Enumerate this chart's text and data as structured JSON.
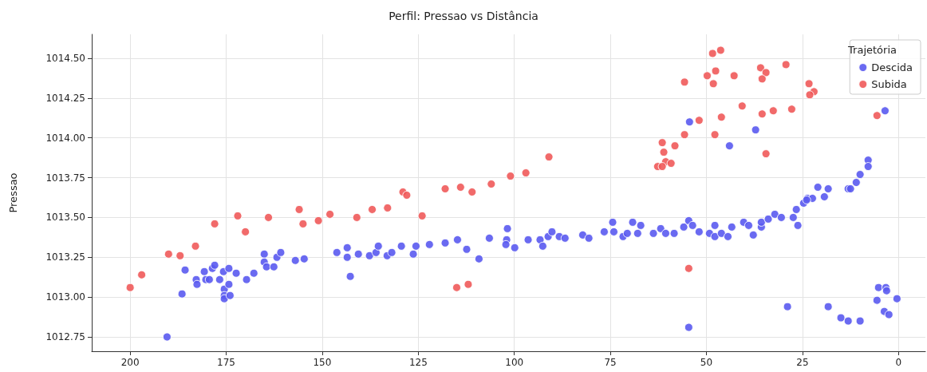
{
  "chart_data": {
    "type": "scatter",
    "title": "Perfil: Pressao vs Distância",
    "ylabel": "Pressao",
    "legend_title": "Trajetória",
    "legend": "top right",
    "grid": true,
    "marker": "circle",
    "xlim": [
      210,
      -7
    ],
    "xticks": [
      200,
      175,
      150,
      125,
      100,
      75,
      50,
      25,
      0
    ],
    "ylim": [
      1012.66,
      1014.65
    ],
    "yticks": [
      {
        "value": 1012.75,
        "label": "1012.75"
      },
      {
        "value": 1013,
        "label": "1013.00"
      },
      {
        "value": 1013.25,
        "label": "1013.25"
      },
      {
        "value": 1013.5,
        "label": "1013.50"
      },
      {
        "value": 1013.75,
        "label": "1013.75"
      },
      {
        "value": 1014,
        "label": "1014.00"
      },
      {
        "value": 1014.25,
        "label": "1014.25"
      },
      {
        "value": 1014.5,
        "label": "1014.50"
      }
    ],
    "series": [
      {
        "name": "Descida",
        "color": "#5a5af0",
        "x": [
          190.4,
          186.5,
          185.7,
          182.8,
          182.6,
          180.7,
          180.3,
          179.4,
          178.6,
          178.0,
          176.7,
          175.7,
          175.5,
          175.5,
          175.5,
          174.3,
          174.3,
          174.0,
          172.4,
          169.7,
          167.8,
          165.1,
          165.1,
          164.5,
          162.6,
          161.8,
          160.8,
          157.0,
          154.7,
          146.2,
          143.5,
          143.5,
          142.7,
          140.6,
          137.7,
          136.0,
          135.4,
          133.1,
          131.9,
          129.4,
          126.3,
          125.6,
          122.1,
          118.0,
          114.8,
          112.4,
          109.2,
          106.5,
          101.8,
          102.0,
          102.2,
          99.9,
          96.4,
          93.3,
          92.6,
          91.2,
          90.2,
          88.3,
          86.8,
          82.2,
          80.6,
          76.6,
          74.4,
          74.1,
          71.7,
          70.6,
          69.2,
          67.1,
          67.9,
          63.8,
          61.9,
          60.6,
          58.4,
          55.9,
          54.6,
          53.6,
          51.9,
          49.2,
          47.8,
          47.8,
          46.1,
          44.4,
          43.4,
          40.3,
          39.0,
          37.8,
          35.7,
          35.7,
          33.9,
          32.2,
          30.5,
          27.4,
          26.2,
          26.6,
          24.7,
          23.7,
          22.4,
          19.3,
          54.6,
          28.9,
          18.3,
          15.0,
          13.1,
          10.0,
          5.6,
          5.2,
          3.3,
          3.1,
          3.7,
          2.5,
          0.4,
          54.4,
          37.2,
          44.0,
          3.5,
          7.9,
          7.9,
          10.0,
          11.0,
          13.1,
          12.5,
          18.3,
          21.0,
          23.9
        ],
        "values": [
          1012.75,
          1013.02,
          1013.17,
          1013.11,
          1013.08,
          1013.16,
          1013.11,
          1013.11,
          1013.18,
          1013.2,
          1013.11,
          1013.16,
          1013.05,
          1013.01,
          1012.99,
          1013.18,
          1013.08,
          1013.01,
          1013.15,
          1013.11,
          1013.15,
          1013.27,
          1013.22,
          1013.19,
          1013.19,
          1013.25,
          1013.28,
          1013.23,
          1013.24,
          1013.28,
          1013.25,
          1013.31,
          1013.13,
          1013.27,
          1013.26,
          1013.28,
          1013.32,
          1013.26,
          1013.28,
          1013.32,
          1013.27,
          1013.32,
          1013.33,
          1013.34,
          1013.36,
          1013.3,
          1013.24,
          1013.37,
          1013.43,
          1013.36,
          1013.33,
          1013.31,
          1013.36,
          1013.36,
          1013.32,
          1013.38,
          1013.41,
          1013.38,
          1013.37,
          1013.39,
          1013.37,
          1013.41,
          1013.47,
          1013.41,
          1013.38,
          1013.4,
          1013.47,
          1013.45,
          1013.4,
          1013.4,
          1013.43,
          1013.4,
          1013.4,
          1013.44,
          1013.48,
          1013.45,
          1013.41,
          1013.4,
          1013.45,
          1013.38,
          1013.4,
          1013.38,
          1013.44,
          1013.47,
          1013.45,
          1013.39,
          1013.44,
          1013.47,
          1013.49,
          1013.52,
          1013.5,
          1013.5,
          1013.45,
          1013.55,
          1013.59,
          1013.62,
          1013.62,
          1013.63,
          1012.81,
          1012.94,
          1012.94,
          1012.87,
          1012.85,
          1012.85,
          1012.98,
          1013.06,
          1013.06,
          1013.04,
          1012.91,
          1012.89,
          1012.99,
          1014.1,
          1014.05,
          1013.95,
          1014.17,
          1013.86,
          1013.82,
          1013.77,
          1013.72,
          1013.68,
          1013.68,
          1013.68,
          1013.69,
          1013.61
        ]
      },
      {
        "name": "Subida",
        "color": "#f05a5a",
        "x": [
          200,
          197,
          190,
          187,
          183,
          178,
          172,
          170,
          164,
          156,
          155,
          151,
          148,
          141,
          137,
          133,
          129,
          128,
          124,
          118,
          114,
          111,
          106,
          101,
          97,
          91,
          115,
          112,
          48.4,
          46.3,
          55.7,
          49.8,
          47.6,
          48.2,
          42.8,
          35.9,
          34.5,
          35.5,
          29.3,
          23.3,
          22.0,
          23.1,
          40.7,
          35.5,
          32.6,
          27.8,
          51.9,
          46.1,
          5.6,
          55.7,
          47.8,
          34.5,
          58.2,
          61.5,
          61.1,
          60.6,
          59.2,
          62.7,
          61.5,
          54.6
        ],
        "values": [
          1013.06,
          1013.14,
          1013.27,
          1013.26,
          1013.32,
          1013.46,
          1013.51,
          1013.41,
          1013.5,
          1013.55,
          1013.46,
          1013.48,
          1013.52,
          1013.5,
          1013.55,
          1013.56,
          1013.66,
          1013.64,
          1013.51,
          1013.68,
          1013.69,
          1013.66,
          1013.71,
          1013.76,
          1013.78,
          1013.88,
          1013.06,
          1013.08,
          1014.53,
          1014.55,
          1014.35,
          1014.39,
          1014.42,
          1014.34,
          1014.39,
          1014.44,
          1014.41,
          1014.37,
          1014.46,
          1014.34,
          1014.29,
          1014.27,
          1014.2,
          1014.15,
          1014.17,
          1014.18,
          1014.11,
          1014.13,
          1014.14,
          1014.02,
          1014.02,
          1013.9,
          1013.95,
          1013.97,
          1013.91,
          1013.85,
          1013.84,
          1013.82,
          1013.82,
          1013.18
        ]
      }
    ]
  }
}
